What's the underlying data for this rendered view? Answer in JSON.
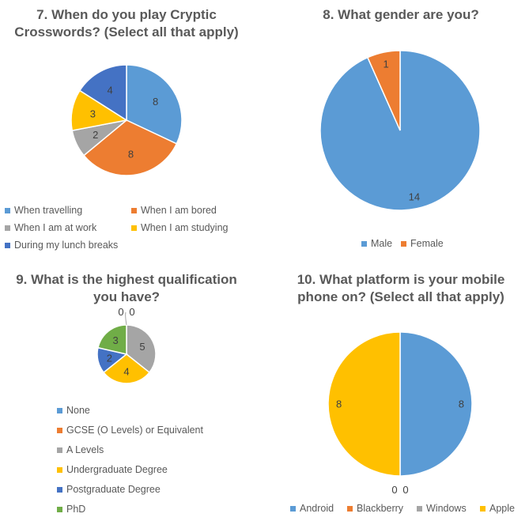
{
  "colors": {
    "blue": "#5B9BD5",
    "orange": "#ED7D31",
    "gray": "#A5A5A5",
    "yellow": "#FFC000",
    "darkblue": "#4472C4",
    "green": "#70AD47"
  },
  "chart_data": [
    {
      "type": "pie",
      "title": "7. When do you play Cryptic Crosswords? (Select all that apply)",
      "title_lines": [
        "7. When do you play Cryptic",
        "Crosswords? (Select all that apply)"
      ],
      "categories": [
        "When travelling",
        "When I am bored",
        "When I am at work",
        "When I am studying",
        "During my lunch breaks"
      ],
      "values": [
        8,
        8,
        2,
        3,
        4
      ],
      "colors": [
        "#5B9BD5",
        "#ED7D31",
        "#A5A5A5",
        "#FFC000",
        "#4472C4"
      ],
      "legend_position": "bottom"
    },
    {
      "type": "pie",
      "title": "8. What gender are you?",
      "title_lines": [
        "8. What gender are you?"
      ],
      "categories": [
        "Male",
        "Female"
      ],
      "values": [
        14,
        1
      ],
      "colors": [
        "#5B9BD5",
        "#ED7D31"
      ],
      "legend_position": "bottom"
    },
    {
      "type": "pie",
      "title": "9. What is the highest qualification you have?",
      "title_lines": [
        "9. What is the highest qualification",
        "you have?"
      ],
      "categories": [
        "None",
        "GCSE (O Levels) or Equivalent",
        "A Levels",
        "Undergraduate Degree",
        "Postgraduate Degree",
        "PhD"
      ],
      "values": [
        0,
        0,
        5,
        4,
        2,
        3
      ],
      "colors": [
        "#5B9BD5",
        "#ED7D31",
        "#A5A5A5",
        "#FFC000",
        "#4472C4",
        "#70AD47"
      ],
      "legend_position": "bottom"
    },
    {
      "type": "pie",
      "title": "10. What platform is your mobile phone on? (Select all that apply)",
      "title_lines": [
        "10. What platform is your mobile",
        "phone on? (Select all that apply)"
      ],
      "categories": [
        "Android",
        "Blackberry",
        "Windows",
        "Apple"
      ],
      "values": [
        8,
        0,
        0,
        8
      ],
      "colors": [
        "#5B9BD5",
        "#ED7D31",
        "#A5A5A5",
        "#FFC000"
      ],
      "legend_position": "bottom"
    }
  ]
}
